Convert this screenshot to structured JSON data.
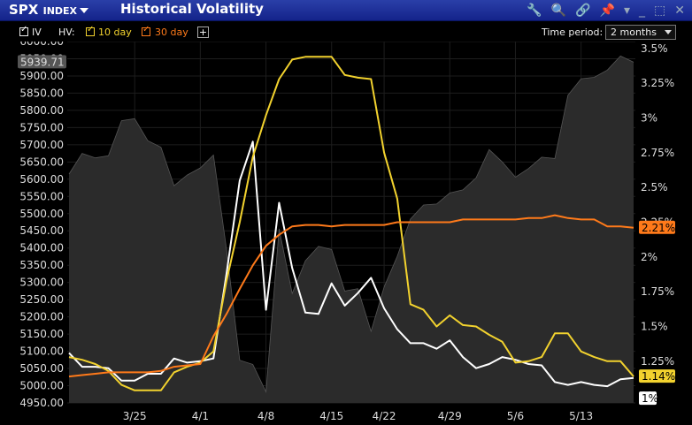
{
  "window": {
    "symbol": "SPX",
    "symbol_suffix": "INDEX",
    "title": "Historical Volatility"
  },
  "toolbar": {
    "iv_label": "IV",
    "hv_label": "HV:",
    "hv10_label": "10 day",
    "hv30_label": "30 day",
    "add_label": "+",
    "time_period_label": "Time period:",
    "time_period_value": "2 months"
  },
  "colors": {
    "price": "#2b2b2b",
    "iv": "#ffffff",
    "hv10": "#f2d22e",
    "hv30": "#ff7a1a"
  },
  "chart_data": {
    "type": "line",
    "x_ticks": [
      "3/25",
      "4/1",
      "4/8",
      "4/15",
      "4/22",
      "4/29",
      "5/6",
      "5/13"
    ],
    "left_axis": {
      "ylim": [
        4950,
        6000
      ],
      "ticks": [
        "6000.00",
        "5950.00",
        "5900.00",
        "5850.00",
        "5800.00",
        "5750.00",
        "5700.00",
        "5650.00",
        "5600.00",
        "5550.00",
        "5500.00",
        "5450.00",
        "5400.00",
        "5350.00",
        "5300.00",
        "5250.00",
        "5200.00",
        "5150.00",
        "5100.00",
        "5050.00",
        "5000.00",
        "4950.00"
      ],
      "current_label": "5939.71"
    },
    "right_axis": {
      "ylim": [
        0.95,
        3.55
      ],
      "ticks": [
        "3.5%",
        "3.25%",
        "3%",
        "2.75%",
        "2.5%",
        "2.25%",
        "2%",
        "1.75%",
        "1.5%",
        "1.25%",
        "1%"
      ],
      "tick_values": [
        3.5,
        3.25,
        3.0,
        2.75,
        2.5,
        2.25,
        2.0,
        1.75,
        1.5,
        1.25,
        1.0
      ],
      "current_labels": {
        "hv30": "2.21%",
        "hv10": "1.14%",
        "iv": "1%"
      }
    },
    "dates": [
      "3/18",
      "3/19",
      "3/20",
      "3/21",
      "3/24",
      "3/25",
      "3/26",
      "3/27",
      "3/28",
      "3/31",
      "4/1",
      "4/2",
      "4/3",
      "4/4",
      "4/7",
      "4/8",
      "4/9",
      "4/10",
      "4/11",
      "4/14",
      "4/15",
      "4/16",
      "4/17",
      "4/21",
      "4/22",
      "4/23",
      "4/24",
      "4/25",
      "4/28",
      "4/29",
      "4/30",
      "5/1",
      "5/2",
      "5/5",
      "5/6",
      "5/7",
      "5/8",
      "5/9",
      "5/12",
      "5/13",
      "5/14",
      "5/15",
      "5/16",
      "5/19"
    ],
    "series": [
      {
        "name": "SPX",
        "axis": "left",
        "values": [
          5615,
          5675,
          5662,
          5668,
          5770,
          5776,
          5712,
          5693,
          5581,
          5612,
          5633,
          5670,
          5396,
          5074,
          5062,
          4982,
          5456,
          5268,
          5363,
          5405,
          5396,
          5275,
          5282,
          5158,
          5287,
          5376,
          5484,
          5525,
          5528,
          5560,
          5569,
          5604,
          5686,
          5650,
          5606,
          5631,
          5664,
          5660,
          5844,
          5892,
          5896,
          5917,
          5958,
          5940
        ]
      },
      {
        "name": "IV",
        "axis": "left_equiv",
        "values": [
          1.31,
          1.21,
          1.21,
          1.2,
          1.11,
          1.11,
          1.16,
          1.16,
          1.27,
          1.24,
          1.25,
          1.27,
          1.88,
          2.55,
          2.83,
          1.62,
          2.39,
          1.92,
          1.6,
          1.59,
          1.81,
          1.65,
          1.74,
          1.85,
          1.63,
          1.48,
          1.38,
          1.38,
          1.34,
          1.4,
          1.28,
          1.2,
          1.23,
          1.28,
          1.26,
          1.23,
          1.22,
          1.1,
          1.08,
          1.1,
          1.08,
          1.07,
          1.12,
          1.13
        ]
      },
      {
        "name": "10 day",
        "axis": "right",
        "values": [
          1.28,
          1.26,
          1.23,
          1.18,
          1.08,
          1.04,
          1.04,
          1.04,
          1.17,
          1.21,
          1.24,
          1.32,
          1.83,
          2.25,
          2.72,
          3.02,
          3.28,
          3.42,
          3.44,
          3.44,
          3.44,
          3.31,
          3.29,
          3.28,
          2.75,
          2.42,
          1.66,
          1.62,
          1.5,
          1.58,
          1.51,
          1.5,
          1.44,
          1.39,
          1.24,
          1.25,
          1.28,
          1.45,
          1.45,
          1.32,
          1.28,
          1.25,
          1.25,
          1.14
        ]
      },
      {
        "name": "30 day",
        "axis": "right",
        "values": [
          1.14,
          1.15,
          1.16,
          1.17,
          1.17,
          1.17,
          1.17,
          1.18,
          1.21,
          1.22,
          1.23,
          1.43,
          1.59,
          1.77,
          1.94,
          2.08,
          2.16,
          2.22,
          2.23,
          2.23,
          2.22,
          2.23,
          2.23,
          2.23,
          2.23,
          2.25,
          2.25,
          2.25,
          2.25,
          2.25,
          2.27,
          2.27,
          2.27,
          2.27,
          2.27,
          2.28,
          2.28,
          2.3,
          2.28,
          2.27,
          2.27,
          2.22,
          2.22,
          2.21
        ]
      }
    ]
  }
}
